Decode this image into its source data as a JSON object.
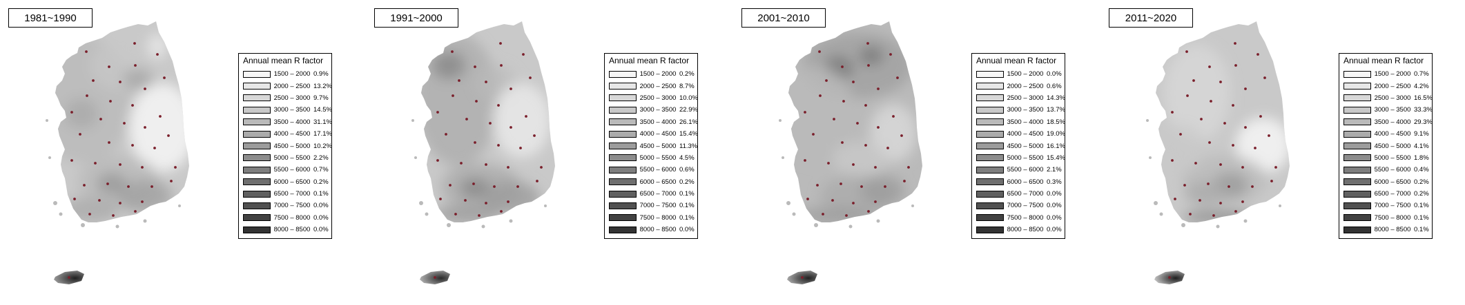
{
  "legend_title": "Annual mean R factor",
  "classes": [
    {
      "range": "1500 – 2000",
      "color": "#f6f6f6"
    },
    {
      "range": "2000 – 2500",
      "color": "#e7e7e7"
    },
    {
      "range": "2500 – 3000",
      "color": "#d8d8d8"
    },
    {
      "range": "3000 – 3500",
      "color": "#c9c9c9"
    },
    {
      "range": "3500 – 4000",
      "color": "#bababa"
    },
    {
      "range": "4000 – 4500",
      "color": "#ababab"
    },
    {
      "range": "4500 – 5000",
      "color": "#9c9c9c"
    },
    {
      "range": "5000 – 5500",
      "color": "#8d8d8d"
    },
    {
      "range": "5500 – 6000",
      "color": "#7e7e7e"
    },
    {
      "range": "6000 – 6500",
      "color": "#6f6f6f"
    },
    {
      "range": "6500 – 7000",
      "color": "#606060"
    },
    {
      "range": "7000 – 7500",
      "color": "#515151"
    },
    {
      "range": "7500 – 8000",
      "color": "#424242"
    },
    {
      "range": "8000 – 8500",
      "color": "#333333"
    }
  ],
  "panels": [
    {
      "period": "1981~1990",
      "percentages": [
        "0.9%",
        "13.2%",
        "9.7%",
        "14.5%",
        "31.1%",
        "17.1%",
        "10.2%",
        "2.2%",
        "0.7%",
        "0.2%",
        "0.1%",
        "0.0%",
        "0.0%",
        "0.0%"
      ]
    },
    {
      "period": "1991~2000",
      "percentages": [
        "0.2%",
        "8.7%",
        "10.0%",
        "22.9%",
        "26.1%",
        "15.4%",
        "11.3%",
        "4.5%",
        "0.6%",
        "0.2%",
        "0.1%",
        "0.1%",
        "0.1%",
        "0.0%"
      ]
    },
    {
      "period": "2001~2010",
      "percentages": [
        "0.0%",
        "0.6%",
        "14.3%",
        "13.7%",
        "18.5%",
        "19.0%",
        "16.1%",
        "15.4%",
        "2.1%",
        "0.3%",
        "0.0%",
        "0.0%",
        "0.0%",
        "0.0%"
      ]
    },
    {
      "period": "2011~2020",
      "percentages": [
        "0.7%",
        "4.2%",
        "16.5%",
        "33.3%",
        "29.3%",
        "9.1%",
        "4.1%",
        "1.8%",
        "0.4%",
        "0.2%",
        "0.2%",
        "0.1%",
        "0.1%",
        "0.1%"
      ]
    }
  ],
  "colors": {
    "station_dot": "#7a1f2b",
    "frame": "#000000"
  }
}
